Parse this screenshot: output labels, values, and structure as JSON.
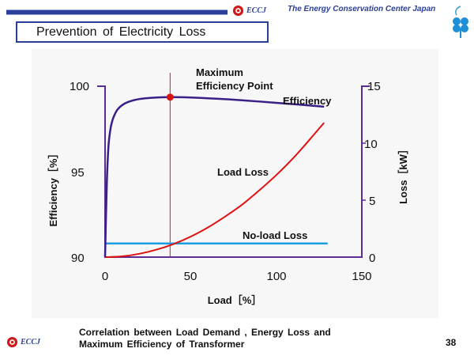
{
  "header": {
    "logo_text": "ECCJ",
    "org_name": "The Energy Conservation Center Japan",
    "title": "Prevention of Electricity Loss"
  },
  "footer": {
    "logo_text": "ECCJ",
    "caption_line1": "Correlation between Load Demand , Energy Loss and",
    "caption_line2": "Maximum Efficiency of Transformer",
    "page_number": "38"
  },
  "colors": {
    "brand_blue": "#2a3f97",
    "efficiency_curve": "#3a1f86",
    "load_loss_curve": "#e01010",
    "no_load_loss_line": "#1a9ee0",
    "max_point_marker": "#d81414"
  },
  "chart_data": {
    "type": "line",
    "xlabel": "Load［%］",
    "ylabel_left": "Efficiency［%］",
    "ylabel_right": "Loss［kW］",
    "xlim": [
      0,
      150
    ],
    "ylim_left": [
      90,
      100
    ],
    "ylim_right": [
      0,
      15
    ],
    "x_ticks": [
      "0",
      "50",
      "100",
      "150"
    ],
    "y_left_ticks": [
      "90",
      "95",
      "100"
    ],
    "y_right_ticks": [
      "0",
      "5",
      "10",
      "15"
    ],
    "grid": false,
    "max_efficiency_load": 38,
    "annotations": {
      "max_point_line1": "Maximum",
      "max_point_line2": "Efficiency Point"
    },
    "series": [
      {
        "name": "Efficiency",
        "axis": "left",
        "x": [
          0,
          1,
          2,
          3,
          4,
          5,
          7,
          10,
          14,
          20,
          28,
          38,
          50,
          65,
          80,
          100,
          115,
          128
        ],
        "y": [
          90.0,
          94.3,
          96.5,
          97.4,
          97.9,
          98.2,
          98.6,
          98.9,
          99.1,
          99.25,
          99.33,
          99.36,
          99.34,
          99.27,
          99.18,
          99.03,
          98.91,
          98.8
        ]
      },
      {
        "name": "Load Loss",
        "axis": "right",
        "x": [
          0,
          10,
          20,
          30,
          40,
          50,
          60,
          70,
          80,
          90,
          100,
          110,
          120,
          128
        ],
        "y": [
          0.0,
          0.07,
          0.29,
          0.65,
          1.15,
          1.8,
          2.6,
          3.55,
          4.6,
          5.85,
          7.2,
          8.7,
          10.4,
          11.8
        ]
      },
      {
        "name": "No-load Loss",
        "axis": "right",
        "x": [
          0,
          130
        ],
        "y": [
          1.2,
          1.2
        ]
      }
    ]
  }
}
